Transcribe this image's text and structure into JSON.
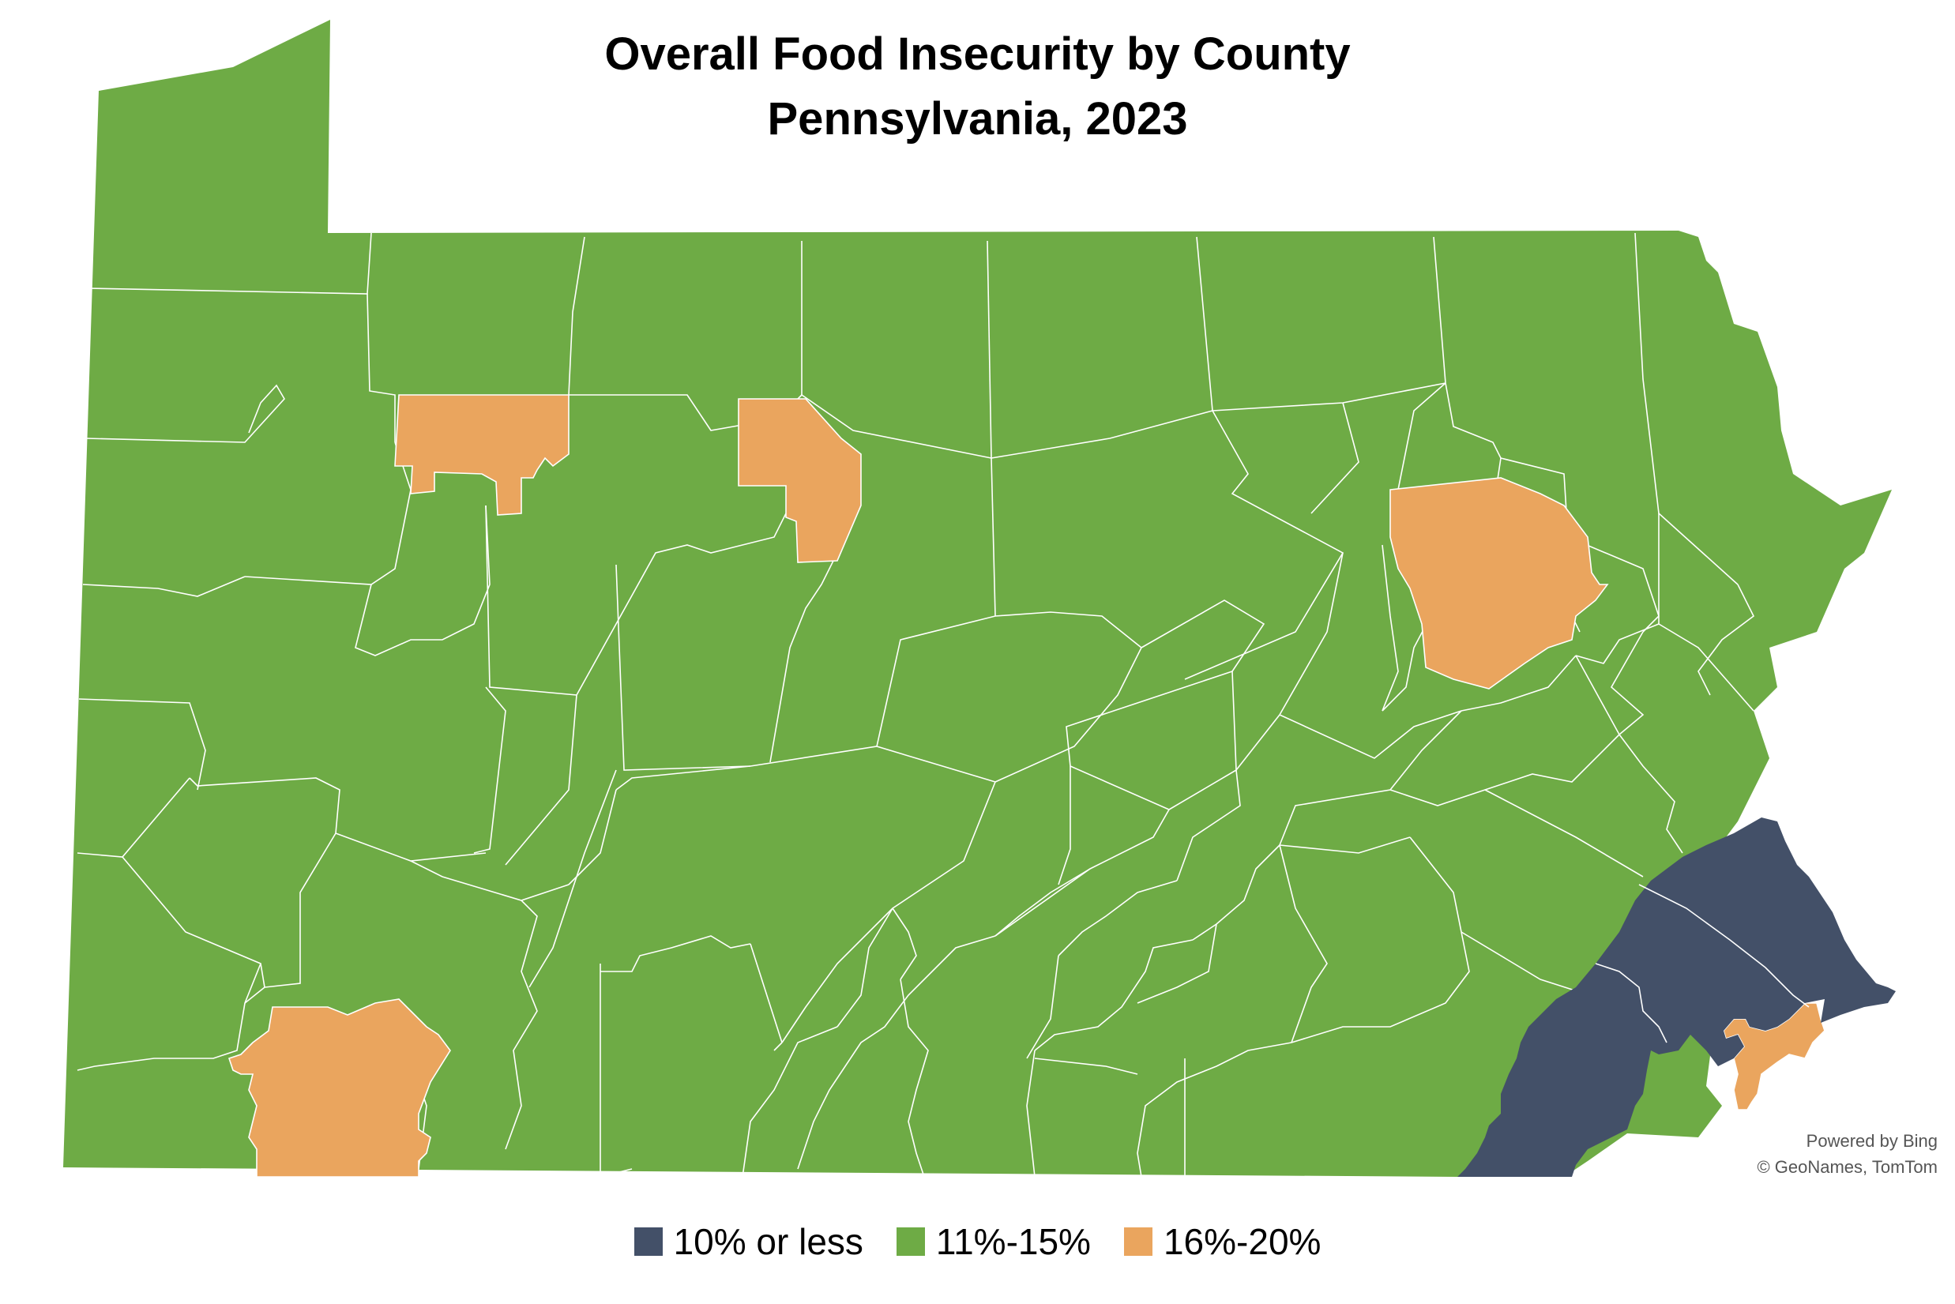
{
  "title": {
    "line1": "Overall Food Insecurity by County",
    "line2": "Pennsylvania, 2023"
  },
  "colors": {
    "low": "#435068",
    "mid": "#6eab45",
    "high": "#eaa55e",
    "border": "#ffffff"
  },
  "legend": [
    {
      "label": "10% or less",
      "color": "#435068"
    },
    {
      "label": "11%-15%",
      "color": "#6eab45"
    },
    {
      "label": "16%-20%",
      "color": "#eaa55e"
    }
  ],
  "attribution": {
    "line1": "Powered by Bing",
    "line2": "© GeoNames, TomTom"
  }
}
